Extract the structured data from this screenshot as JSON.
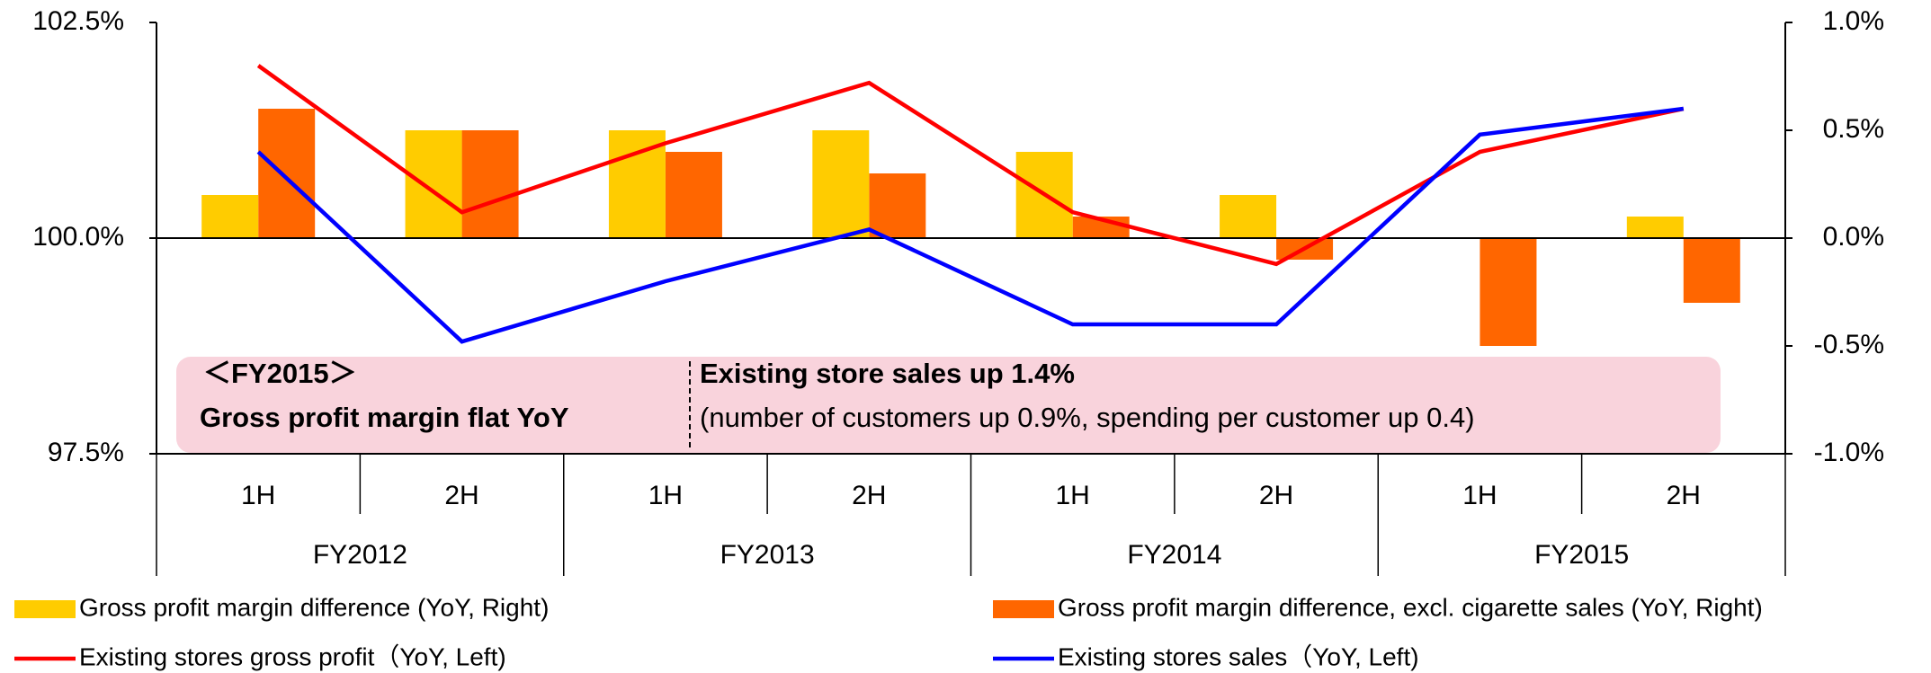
{
  "chart_data": {
    "type": "bar-line",
    "categories": [
      "1H",
      "2H",
      "1H",
      "2H",
      "1H",
      "2H",
      "1H",
      "2H"
    ],
    "groups": [
      "FY2012",
      "FY2013",
      "FY2014",
      "FY2015"
    ],
    "series": [
      {
        "name": "Gross profit margin difference (YoY, Right)",
        "color": "#ffcc00",
        "type": "bar",
        "axis": "y2",
        "values": [
          0.2,
          0.5,
          0.5,
          0.5,
          0.4,
          0.2,
          0,
          0.1
        ]
      },
      {
        "name": "Gross profit margin difference, excl. cigarette sales (YoY, Right)",
        "color": "#ff6600",
        "type": "bar",
        "axis": "y2",
        "values": [
          0.6,
          0.5,
          0.4,
          0.3,
          0.1,
          -0.1,
          -0.5,
          -0.3
        ]
      },
      {
        "name": "Existing stores gross profit（YoY, Left)",
        "color": "#ff0000",
        "type": "line",
        "values": [
          102.0,
          100.3,
          101.1,
          101.8,
          100.3,
          99.7,
          101.0,
          101.5
        ]
      },
      {
        "name": "Existing stores sales（YoY, Left)",
        "color": "#0000ff",
        "type": "line",
        "values": [
          101.0,
          98.8,
          99.5,
          100.1,
          99.0,
          99.0,
          101.2,
          101.5
        ]
      }
    ],
    "ylim": [
      97.5,
      102.5
    ],
    "yticks": [
      {
        "value": 97.5,
        "label": "97.5%"
      },
      {
        "value": 100,
        "label": "100.0%"
      },
      {
        "value": 102.5,
        "label": "102.5%"
      }
    ],
    "y2lim": [
      -1,
      1
    ],
    "y2ticks": [
      {
        "value": -1,
        "label": "-1.0%"
      },
      {
        "value": -0.5,
        "label": "-0.5%"
      },
      {
        "value": 0,
        "label": "0.0%"
      },
      {
        "value": 0.5,
        "label": "0.5%"
      },
      {
        "value": 1,
        "label": "1.0%"
      }
    ],
    "annotation": {
      "heading": "＜FY2015＞",
      "left": "Gross profit margin flat YoY",
      "right_title": "Existing store sales up 1.4%",
      "right_detail": "(number of customers up 0.9%, spending per customer up 0.4)"
    }
  }
}
